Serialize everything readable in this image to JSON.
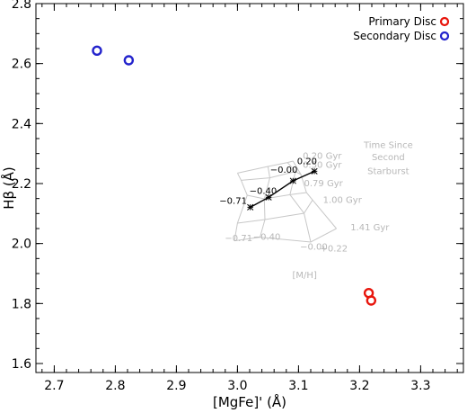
{
  "chart_data": {
    "type": "scatter",
    "xlabel": "[MgFe]' (Å)",
    "ylabel": "Hβ (Å)",
    "xlim": [
      2.67,
      3.37
    ],
    "ylim": [
      1.57,
      2.8
    ],
    "xticks": [
      "2.7",
      "2.8",
      "2.9",
      "3.0",
      "3.1",
      "3.2",
      "3.3"
    ],
    "yticks": [
      "1.6",
      "1.8",
      "2.0",
      "2.2",
      "2.4",
      "2.6",
      "2.8"
    ],
    "legend": {
      "placement": "top-right",
      "entries": [
        {
          "label": "Primary Disc",
          "color": "#e8150c"
        },
        {
          "label": "Secondary Disc",
          "color": "#2323cc"
        }
      ]
    },
    "series": [
      {
        "name": "Primary Disc",
        "color": "#e8150c",
        "points": [
          {
            "x": 3.215,
            "y": 1.835
          },
          {
            "x": 3.219,
            "y": 1.81
          }
        ]
      },
      {
        "name": "Secondary Disc",
        "color": "#2323cc",
        "points": [
          {
            "x": 2.77,
            "y": 2.643
          },
          {
            "x": 2.822,
            "y": 2.611
          }
        ]
      }
    ],
    "model_grid": {
      "color": "#c8c8c8",
      "metallicity_labels": [
        "−0.71",
        "−0.40",
        "−0.00",
        "+0.22"
      ],
      "age_labels": [
        "0.20 Gyr",
        "0.50 Gyr",
        "0.79 Gyr",
        "1.00 Gyr",
        "1.41 Gyr"
      ],
      "axis_name": "[M/H]",
      "age_axis_name": [
        "Time Since",
        "Second",
        "Starburst"
      ],
      "columns": [
        [
          [
            3.0,
            2.235
          ],
          [
            3.006,
            2.211
          ],
          [
            3.016,
            2.161
          ],
          [
            3.0,
            2.068
          ],
          [
            2.995,
            2.009
          ]
        ],
        [
          [
            3.05,
            2.257
          ],
          [
            3.053,
            2.219
          ],
          [
            3.044,
            2.149
          ],
          [
            3.045,
            2.08
          ],
          [
            3.037,
            2.021
          ]
        ],
        [
          [
            3.082,
            2.27
          ],
          [
            3.095,
            2.24
          ],
          [
            3.086,
            2.163
          ],
          [
            3.109,
            2.101
          ],
          [
            3.12,
            2.005
          ]
        ],
        [
          [
            3.091,
            2.275
          ],
          [
            3.104,
            2.23
          ],
          [
            3.113,
            2.17
          ],
          [
            3.123,
            2.145
          ],
          [
            3.162,
            2.05
          ]
        ]
      ],
      "label_positions": {
        "age": [
          [
            3.107,
            2.282
          ],
          [
            3.107,
            2.253
          ],
          [
            3.109,
            2.191
          ],
          [
            3.14,
            2.136
          ],
          [
            3.185,
            2.044
          ]
        ],
        "metallicity": [
          [
            3.002,
            2.008
          ],
          [
            3.048,
            2.012
          ],
          [
            3.125,
            1.98
          ],
          [
            3.158,
            1.974
          ]
        ],
        "axis_name": [
          3.11,
          1.885
        ],
        "age_axis_name": [
          [
            3.247,
            2.318
          ],
          [
            3.247,
            2.278
          ],
          [
            3.247,
            2.231
          ]
        ]
      }
    },
    "track": {
      "color": "#000000",
      "points": [
        {
          "x": 3.021,
          "y": 2.121,
          "label": "−0.71"
        },
        {
          "x": 3.051,
          "y": 2.154,
          "label": "−0.40"
        },
        {
          "x": 3.091,
          "y": 2.209,
          "label": "−0.00"
        },
        {
          "x": 3.126,
          "y": 2.241,
          "label": "0.20"
        }
      ],
      "label_positions": [
        [
          2.993,
          2.132
        ],
        [
          3.042,
          2.166
        ],
        [
          3.076,
          2.236
        ],
        [
          3.114,
          2.265
        ]
      ]
    }
  }
}
